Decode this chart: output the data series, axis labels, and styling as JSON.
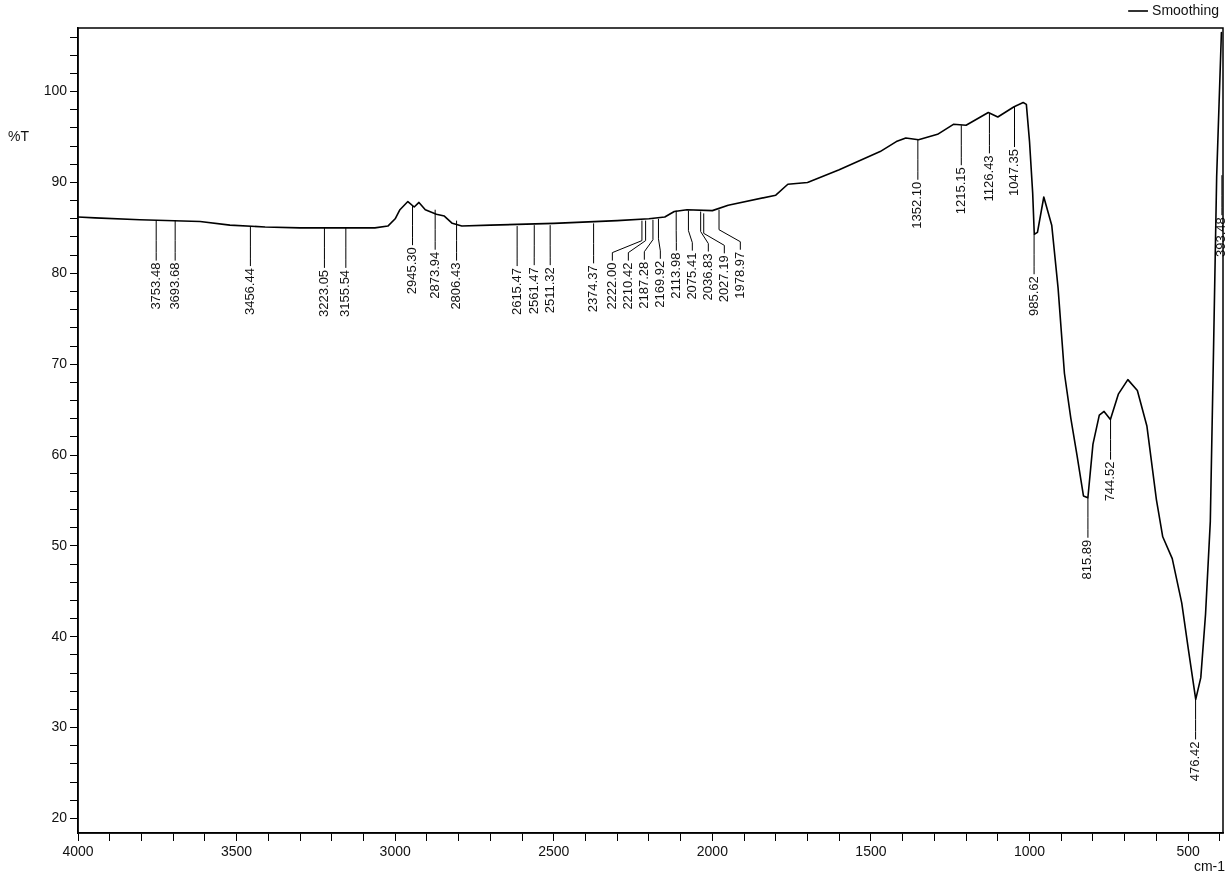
{
  "chart_data": {
    "type": "line",
    "xlabel": "cm-1",
    "ylabel": "%T",
    "legend": "top right",
    "marker": "none",
    "line_style": "solid",
    "grid": false,
    "xlim": [
      4000,
      390
    ],
    "ylim": [
      18.4,
      107
    ],
    "xticks": [
      4000,
      {
        "value": 3900,
        "label": null
      },
      {
        "value": 3800,
        "label": null
      },
      {
        "value": 3700,
        "label": null
      },
      {
        "value": 3600,
        "label": null
      },
      3500,
      {
        "value": 3400,
        "label": null
      },
      {
        "value": 3300,
        "label": null
      },
      {
        "value": 3200,
        "label": null
      },
      {
        "value": 3100,
        "label": null
      },
      3000,
      {
        "value": 2900,
        "label": null
      },
      {
        "value": 2800,
        "label": null
      },
      {
        "value": 2700,
        "label": null
      },
      {
        "value": 2600,
        "label": null
      },
      2500,
      {
        "value": 2400,
        "label": null
      },
      {
        "value": 2300,
        "label": null
      },
      {
        "value": 2200,
        "label": null
      },
      {
        "value": 2100,
        "label": null
      },
      2000,
      {
        "value": 1900,
        "label": null
      },
      {
        "value": 1800,
        "label": null
      },
      {
        "value": 1700,
        "label": null
      },
      {
        "value": 1600,
        "label": null
      },
      1500,
      {
        "value": 1400,
        "label": null
      },
      {
        "value": 1300,
        "label": null
      },
      {
        "value": 1200,
        "label": null
      },
      {
        "value": 1100,
        "label": null
      },
      1000,
      {
        "value": 900,
        "label": null
      },
      {
        "value": 800,
        "label": null
      },
      {
        "value": 700,
        "label": null
      },
      {
        "value": 600,
        "label": null
      },
      500,
      {
        "value": 400,
        "label": null
      }
    ],
    "yticks": [
      20,
      {
        "value": 22,
        "label": null
      },
      {
        "value": 24,
        "label": null
      },
      {
        "value": 26,
        "label": null
      },
      {
        "value": 28,
        "label": null
      },
      30,
      {
        "value": 32,
        "label": null
      },
      {
        "value": 34,
        "label": null
      },
      {
        "value": 36,
        "label": null
      },
      {
        "value": 38,
        "label": null
      },
      40,
      {
        "value": 42,
        "label": null
      },
      {
        "value": 44,
        "label": null
      },
      {
        "value": 46,
        "label": null
      },
      {
        "value": 48,
        "label": null
      },
      50,
      {
        "value": 52,
        "label": null
      },
      {
        "value": 54,
        "label": null
      },
      {
        "value": 56,
        "label": null
      },
      {
        "value": 58,
        "label": null
      },
      60,
      {
        "value": 62,
        "label": null
      },
      {
        "value": 64,
        "label": null
      },
      {
        "value": 66,
        "label": null
      },
      {
        "value": 68,
        "label": null
      },
      70,
      {
        "value": 72,
        "label": null
      },
      {
        "value": 74,
        "label": null
      },
      {
        "value": 76,
        "label": null
      },
      {
        "value": 78,
        "label": null
      },
      80,
      {
        "value": 82,
        "label": null
      },
      {
        "value": 84,
        "label": null
      },
      {
        "value": 86,
        "label": null
      },
      {
        "value": 88,
        "label": null
      },
      90,
      {
        "value": 92,
        "label": null
      },
      {
        "value": 94,
        "label": null
      },
      {
        "value": 96,
        "label": null
      },
      {
        "value": 98,
        "label": null
      },
      100,
      {
        "value": 102,
        "label": null
      },
      {
        "value": 104,
        "label": null
      },
      {
        "value": 106,
        "label": null
      }
    ],
    "series": [
      {
        "name": "Smoothing",
        "color": "#000000",
        "x": [
          4000,
          3946,
          3805,
          3615,
          3521,
          3410,
          3300,
          3064,
          3023,
          3000,
          2985,
          2960,
          2940,
          2925,
          2905,
          2870,
          2845,
          2820,
          2790,
          2700,
          2500,
          2300,
          2200,
          2150,
          2120,
          2080,
          2000,
          1950,
          1800,
          1762,
          1700,
          1600,
          1471,
          1420,
          1390,
          1350,
          1290,
          1240,
          1200,
          1130,
          1100,
          1050,
          1020,
          1010,
          1000,
          990,
          985,
          975,
          955,
          930,
          910,
          890,
          870,
          850,
          830,
          816,
          800,
          780,
          765,
          745,
          720,
          690,
          660,
          630,
          600,
          580,
          550,
          520,
          500,
          476,
          460,
          445,
          430,
          420,
          410,
          395
        ],
        "values": [
          86.2,
          86.1,
          85.9,
          85.7,
          85.3,
          85.1,
          85.0,
          85.0,
          85.2,
          86.0,
          87.0,
          87.9,
          87.3,
          87.8,
          87.0,
          86.5,
          86.3,
          85.5,
          85.2,
          85.3,
          85.5,
          85.8,
          86.0,
          86.2,
          86.8,
          87.0,
          86.9,
          87.5,
          88.6,
          89.8,
          90.0,
          91.4,
          93.4,
          94.5,
          94.9,
          94.7,
          95.3,
          96.4,
          96.3,
          97.7,
          97.2,
          98.3,
          98.8,
          98.6,
          94.5,
          88.8,
          84.3,
          84.5,
          88.4,
          85.3,
          78.4,
          69.0,
          64.1,
          59.9,
          55.5,
          55.3,
          61.2,
          64.4,
          64.8,
          63.9,
          66.7,
          68.3,
          67.1,
          63.2,
          55.1,
          51.0,
          48.6,
          43.7,
          38.8,
          33.1,
          35.5,
          42.5,
          52.7,
          71.3,
          90.6,
          106.5
        ]
      }
    ],
    "annotations": [
      {
        "text": "3753.48",
        "x": 3753.48,
        "y": 85.8
      },
      {
        "text": "3693.68",
        "x": 3693.68,
        "y": 85.8
      },
      {
        "text": "3456.44",
        "x": 3456.44,
        "y": 85.2
      },
      {
        "text": "3223.05",
        "x": 3223.05,
        "y": 85.0
      },
      {
        "text": "3155.54",
        "x": 3155.54,
        "y": 85.0
      },
      {
        "text": "2945.30",
        "x": 2945.3,
        "y": 87.5
      },
      {
        "text": "2873.94",
        "x": 2873.94,
        "y": 87.0
      },
      {
        "text": "2806.43",
        "x": 2806.43,
        "y": 85.8
      },
      {
        "text": "2615.47",
        "x": 2615.47,
        "y": 85.2
      },
      {
        "text": "2561.47",
        "x": 2561.47,
        "y": 85.3
      },
      {
        "text": "2511.32",
        "x": 2511.32,
        "y": 85.3
      },
      {
        "text": "2374.37",
        "x": 2374.37,
        "y": 85.5
      },
      {
        "text": "2222.00",
        "x": 2222.0,
        "y": 85.8
      },
      {
        "text": "2210.42",
        "x": 2210.42,
        "y": 85.8
      },
      {
        "text": "2187.28",
        "x": 2187.28,
        "y": 85.9
      },
      {
        "text": "2169.92",
        "x": 2169.92,
        "y": 86.0
      },
      {
        "text": "2113.98",
        "x": 2113.98,
        "y": 86.9
      },
      {
        "text": "2075.41",
        "x": 2075.41,
        "y": 86.9
      },
      {
        "text": "2036.83",
        "x": 2036.83,
        "y": 86.8
      },
      {
        "text": "2027.19",
        "x": 2027.19,
        "y": 86.6
      },
      {
        "text": "1978.97",
        "x": 1978.97,
        "y": 87.0
      },
      {
        "text": "1352.10",
        "x": 1352.1,
        "y": 94.7
      },
      {
        "text": "1215.15",
        "x": 1215.15,
        "y": 96.3
      },
      {
        "text": "1126.43",
        "x": 1126.43,
        "y": 97.6
      },
      {
        "text": "1047.35",
        "x": 1047.35,
        "y": 98.3
      },
      {
        "text": "985.62",
        "x": 985.62,
        "y": 84.3
      },
      {
        "text": "815.89",
        "x": 815.89,
        "y": 55.3
      },
      {
        "text": "744.52",
        "x": 744.52,
        "y": 63.9
      },
      {
        "text": "476.42",
        "x": 476.42,
        "y": 33.1
      },
      {
        "text": "393.48",
        "x": 393.48,
        "y": 90.8
      }
    ]
  }
}
